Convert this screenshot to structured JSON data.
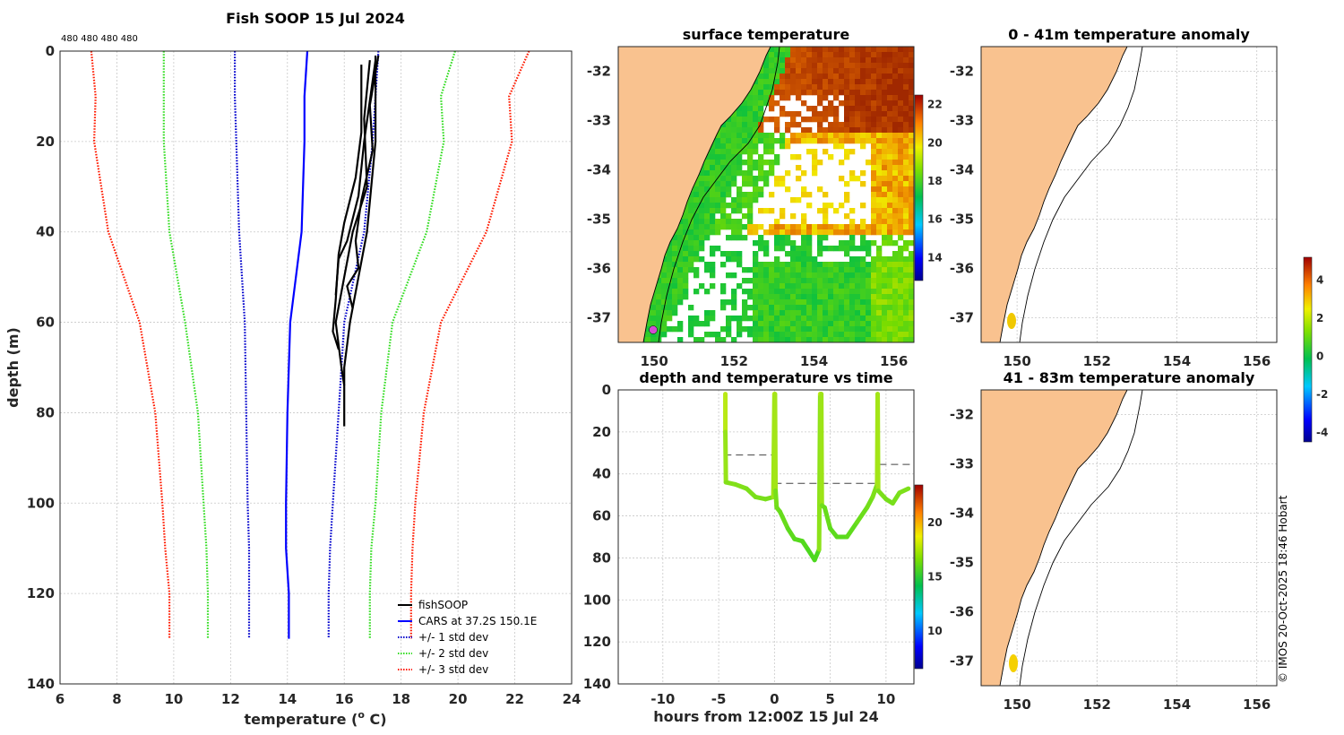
{
  "profile": {
    "title": "Fish SOOP 15 Jul 2024",
    "counts_label": "480 480 480 480",
    "xlabel": "temperature (",
    "xlabel_sup": "o",
    "xlabel_end": " C)",
    "ylabel": "depth (m)",
    "legend": [
      "fishSOOP",
      "CARS at 37.2S 150.1E",
      "+/- 1 std dev",
      "+/- 2 std dev",
      "+/- 3 std dev"
    ]
  },
  "sst": {
    "title": "surface temperature"
  },
  "time": {
    "title": "depth and temperature vs time",
    "xlabel": "hours from 12:00Z 15 Jul 24"
  },
  "anom1": {
    "title": "0 - 41m temperature anomaly"
  },
  "anom2": {
    "title": "41 - 83m temperature anomaly"
  },
  "copyright": "© IMOS 20-Oct-2025 18:46 Hobart",
  "colors": {
    "cars": "#0000ff",
    "std1": "#0000cc",
    "std2": "#33dd22",
    "std3": "#ff1a00",
    "fish": "#000000",
    "land": "#f9c28f"
  },
  "chart_data": [
    {
      "type": "line",
      "name": "profile",
      "xlim": [
        6,
        24
      ],
      "ylim": [
        0,
        140
      ],
      "y_reversed": true,
      "xticks": [
        6,
        8,
        10,
        12,
        14,
        16,
        18,
        20,
        22,
        24
      ],
      "yticks": [
        0,
        20,
        40,
        60,
        80,
        100,
        120,
        140
      ],
      "series": [
        {
          "name": "CARS at 37.2S 150.1E",
          "style": "solid",
          "color": "cars",
          "points": [
            [
              14.7,
              0
            ],
            [
              14.6,
              10
            ],
            [
              14.6,
              20
            ],
            [
              14.5,
              40
            ],
            [
              14.1,
              60
            ],
            [
              14.0,
              80
            ],
            [
              13.95,
              100
            ],
            [
              13.95,
              110
            ],
            [
              14.05,
              120
            ],
            [
              14.05,
              130
            ]
          ]
        },
        {
          "name": "-1 std",
          "style": "dot",
          "color": "std1",
          "points": [
            [
              12.15,
              0
            ],
            [
              12.15,
              10
            ],
            [
              12.2,
              20
            ],
            [
              12.3,
              40
            ],
            [
              12.5,
              60
            ],
            [
              12.55,
              80
            ],
            [
              12.6,
              100
            ],
            [
              12.65,
              110
            ],
            [
              12.65,
              120
            ],
            [
              12.65,
              130
            ]
          ]
        },
        {
          "name": "+1 std",
          "style": "dot",
          "color": "std1",
          "points": [
            [
              17.2,
              0
            ],
            [
              17.1,
              10
            ],
            [
              17.0,
              20
            ],
            [
              16.7,
              40
            ],
            [
              16.0,
              60
            ],
            [
              15.8,
              80
            ],
            [
              15.6,
              100
            ],
            [
              15.5,
              110
            ],
            [
              15.45,
              120
            ],
            [
              15.45,
              130
            ]
          ]
        },
        {
          "name": "-2 std",
          "style": "dot",
          "color": "std2",
          "points": [
            [
              9.65,
              0
            ],
            [
              9.65,
              10
            ],
            [
              9.65,
              20
            ],
            [
              9.85,
              40
            ],
            [
              10.4,
              60
            ],
            [
              10.85,
              80
            ],
            [
              11.05,
              100
            ],
            [
              11.15,
              110
            ],
            [
              11.2,
              120
            ],
            [
              11.2,
              130
            ]
          ]
        },
        {
          "name": "+2 std",
          "style": "dot",
          "color": "std2",
          "points": [
            [
              19.9,
              0
            ],
            [
              19.4,
              10
            ],
            [
              19.5,
              20
            ],
            [
              18.9,
              40
            ],
            [
              17.7,
              60
            ],
            [
              17.3,
              80
            ],
            [
              17.1,
              100
            ],
            [
              16.95,
              110
            ],
            [
              16.9,
              120
            ],
            [
              16.9,
              130
            ]
          ]
        },
        {
          "name": "-3 std",
          "style": "dot",
          "color": "std3",
          "points": [
            [
              7.1,
              0
            ],
            [
              7.25,
              10
            ],
            [
              7.2,
              20
            ],
            [
              7.7,
              40
            ],
            [
              8.8,
              60
            ],
            [
              9.35,
              80
            ],
            [
              9.6,
              100
            ],
            [
              9.7,
              110
            ],
            [
              9.85,
              120
            ],
            [
              9.85,
              130
            ]
          ]
        },
        {
          "name": "+3 std",
          "style": "dot",
          "color": "std3",
          "points": [
            [
              22.5,
              0
            ],
            [
              21.8,
              10
            ],
            [
              21.9,
              20
            ],
            [
              21.0,
              40
            ],
            [
              19.4,
              60
            ],
            [
              18.8,
              80
            ],
            [
              18.5,
              100
            ],
            [
              18.4,
              110
            ],
            [
              18.35,
              120
            ],
            [
              18.35,
              130
            ]
          ]
        },
        {
          "name": "fishSOOP 1",
          "style": "solid",
          "color": "fish",
          "points": [
            [
              17.1,
              1
            ],
            [
              17.1,
              20
            ],
            [
              16.8,
              40
            ],
            [
              16.5,
              50
            ],
            [
              16.2,
              60
            ],
            [
              16.0,
              70
            ],
            [
              16.0,
              83
            ]
          ]
        },
        {
          "name": "fishSOOP 2",
          "style": "solid",
          "color": "fish",
          "points": [
            [
              16.9,
              2
            ],
            [
              16.7,
              15
            ],
            [
              16.8,
              30
            ],
            [
              16.3,
              40
            ],
            [
              16.0,
              50
            ],
            [
              15.7,
              60
            ],
            [
              15.9,
              70
            ],
            [
              16.0,
              74
            ]
          ]
        },
        {
          "name": "fishSOOP 3",
          "style": "solid",
          "color": "fish",
          "points": [
            [
              16.6,
              3
            ],
            [
              16.6,
              18
            ],
            [
              16.4,
              28
            ],
            [
              16.0,
              38
            ],
            [
              15.8,
              45
            ],
            [
              15.7,
              55
            ],
            [
              15.6,
              62
            ],
            [
              15.8,
              66
            ]
          ]
        },
        {
          "name": "fishSOOP 4",
          "style": "solid",
          "color": "fish",
          "points": [
            [
              17.2,
              1
            ],
            [
              16.9,
              12
            ],
            [
              17.0,
              22
            ],
            [
              16.6,
              33
            ],
            [
              16.4,
              42
            ],
            [
              16.5,
              48
            ],
            [
              16.1,
              52
            ],
            [
              16.3,
              57
            ]
          ]
        },
        {
          "name": "fishSOOP 5",
          "style": "solid",
          "color": "fish",
          "points": [
            [
              17.1,
              2
            ],
            [
              16.7,
              20
            ],
            [
              16.5,
              32
            ],
            [
              16.1,
              42
            ],
            [
              15.8,
              46
            ],
            [
              15.7,
              54
            ]
          ]
        }
      ]
    },
    {
      "type": "heatmap",
      "name": "surface temperature",
      "xlim": [
        149.1,
        156.5
      ],
      "ylim": [
        -37.5,
        -31.5
      ],
      "xticks": [
        150,
        152,
        154,
        156
      ],
      "yticks": [
        -32,
        -33,
        -34,
        -35,
        -36,
        -37
      ],
      "colorbar": {
        "range": [
          12.8,
          22.5
        ],
        "ticks": [
          14,
          16,
          18,
          20,
          22
        ]
      },
      "markers": [
        {
          "lon": 150.15,
          "lat": -37.2,
          "color": "#d24dd2"
        }
      ]
    },
    {
      "type": "scatter",
      "name": "depth and temperature vs time",
      "xlim": [
        -14,
        12.5
      ],
      "ylim": [
        0,
        140
      ],
      "y_reversed": true,
      "xticks": [
        -10,
        -5,
        0,
        5,
        10
      ],
      "yticks": [
        0,
        20,
        40,
        60,
        80,
        100,
        120,
        140
      ],
      "colorbar": {
        "range": [
          6.5,
          23.5
        ],
        "ticks": [
          10,
          15,
          20
        ]
      },
      "track": [
        [
          -4.4,
          2
        ],
        [
          -4.4,
          20
        ],
        [
          -4.35,
          44
        ],
        [
          -3.5,
          45
        ],
        [
          -2.5,
          47
        ],
        [
          -1.7,
          51
        ],
        [
          -0.8,
          52
        ],
        [
          -0.1,
          51
        ],
        [
          0,
          2
        ],
        [
          0.05,
          2
        ],
        [
          0.1,
          48
        ],
        [
          0.2,
          56
        ],
        [
          0.5,
          58
        ],
        [
          1.2,
          66
        ],
        [
          1.8,
          71
        ],
        [
          2.5,
          72
        ],
        [
          3.0,
          76
        ],
        [
          3.6,
          81
        ],
        [
          4.0,
          76
        ],
        [
          4.1,
          2
        ],
        [
          4.2,
          2
        ],
        [
          4.25,
          55
        ],
        [
          4.5,
          56
        ],
        [
          5.0,
          66
        ],
        [
          5.6,
          70
        ],
        [
          6.5,
          70
        ],
        [
          7.4,
          63
        ],
        [
          8.3,
          56
        ],
        [
          8.8,
          51
        ],
        [
          9.2,
          45
        ],
        [
          9.25,
          2
        ],
        [
          9.3,
          48
        ],
        [
          10.0,
          52
        ],
        [
          10.6,
          54
        ],
        [
          11.2,
          49
        ],
        [
          12.0,
          47
        ]
      ],
      "reference_lines": [
        [
          [
            -4.5,
            31
          ],
          [
            -0.1,
            31
          ]
        ],
        [
          [
            0,
            44.5
          ],
          [
            9.2,
            44.5
          ]
        ],
        [
          [
            9.4,
            35.5
          ],
          [
            12.2,
            35.5
          ]
        ]
      ]
    },
    {
      "type": "heatmap",
      "name": "0 - 41m temperature anomaly",
      "xlim": [
        149.1,
        156.5
      ],
      "ylim": [
        -37.5,
        -31.5
      ],
      "xticks": [
        150,
        152,
        154,
        156
      ],
      "yticks": [
        -32,
        -33,
        -34,
        -35,
        -36,
        -37
      ],
      "colorbar": {
        "range": [
          -4.5,
          5.2
        ],
        "ticks": [
          -4,
          -2,
          0,
          2,
          4
        ]
      },
      "points": [
        {
          "lon": 150.1,
          "lat": -37.05,
          "value": 2.5
        }
      ]
    },
    {
      "type": "heatmap",
      "name": "41 - 83m temperature anomaly",
      "xlim": [
        149.1,
        156.5
      ],
      "ylim": [
        -37.5,
        -31.5
      ],
      "xticks": [
        150,
        152,
        154,
        156
      ],
      "yticks": [
        -32,
        -33,
        -34,
        -35,
        -36,
        -37
      ],
      "points": [
        {
          "lon": 150.1,
          "lat": -37.1,
          "value": 2.8
        }
      ]
    }
  ]
}
